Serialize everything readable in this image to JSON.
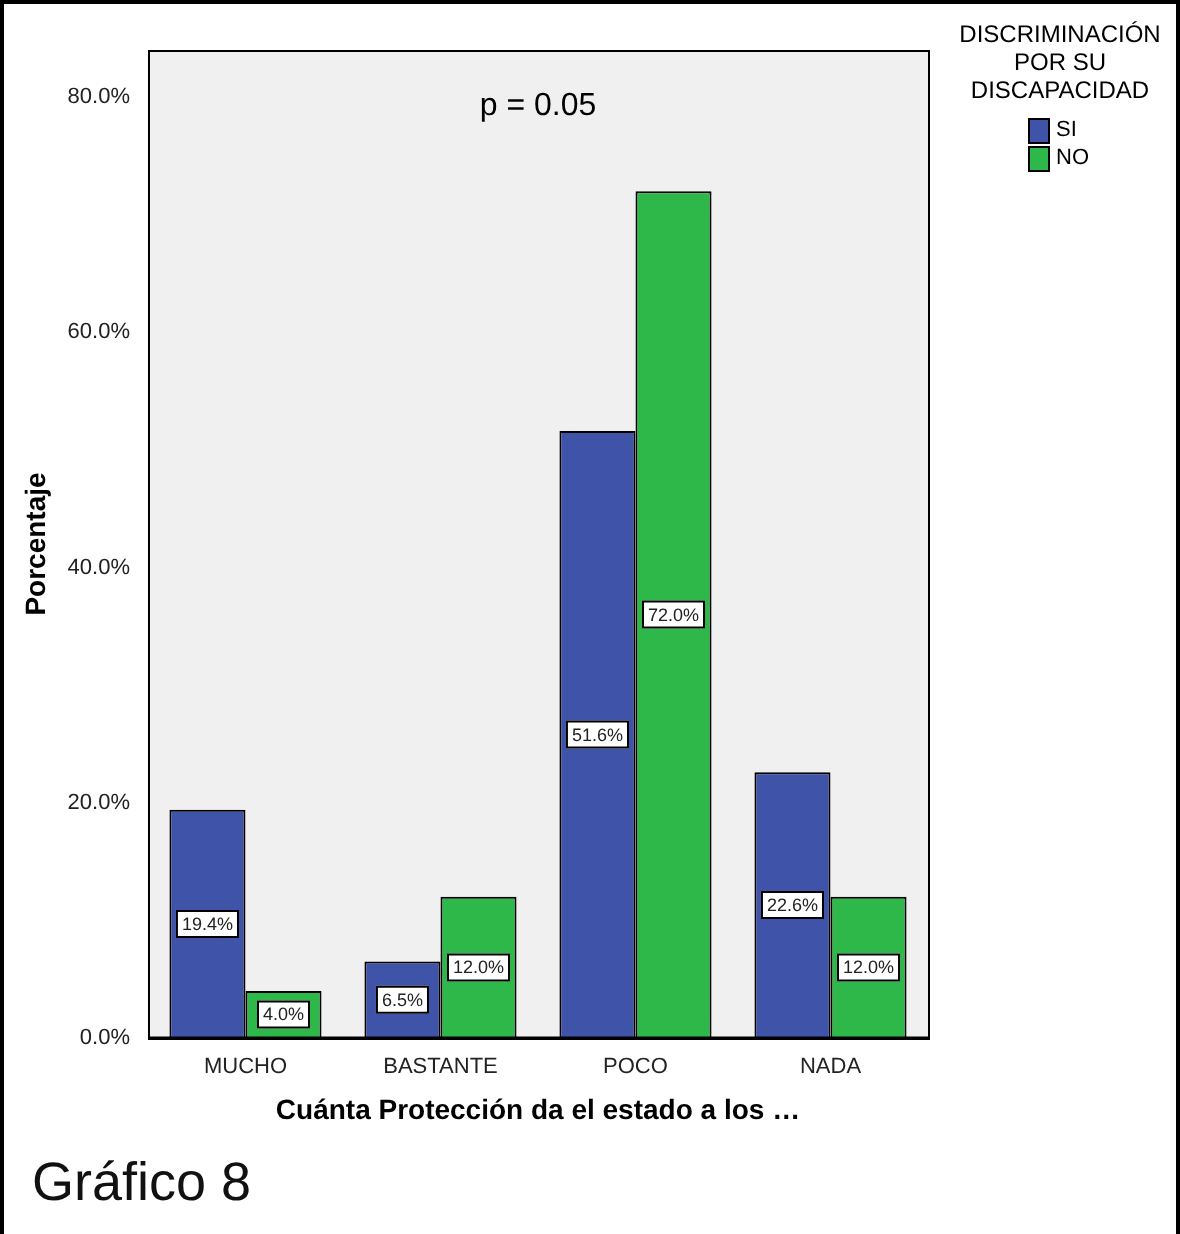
{
  "chart_data": {
    "type": "bar",
    "xlabel": "Cuánta Protección da el estado a los …",
    "ylabel": "Porcentaje",
    "legend_title": "DISCRIMINACIÓN POR SU DISCAPACIDAD",
    "categories": [
      "MUCHO",
      "BASTANTE",
      "POCO",
      "NADA"
    ],
    "series": [
      {
        "name": "SI",
        "color": "#3f54a8",
        "values": [
          19.4,
          6.5,
          51.6,
          22.6
        ],
        "value_labels": [
          "19.4%",
          "6.5%",
          "51.6%",
          "22.6%"
        ]
      },
      {
        "name": "NO",
        "color": "#2eb84a",
        "values": [
          4.0,
          12.0,
          72.0,
          12.0
        ],
        "value_labels": [
          "4.0%",
          "12.0%",
          "72.0%",
          "12.0%"
        ]
      }
    ],
    "ylim": [
      0,
      84
    ],
    "yticks": [
      {
        "value": 0,
        "label": "0.0%"
      },
      {
        "value": 20,
        "label": "20.0%"
      },
      {
        "value": 40,
        "label": "40.0%"
      },
      {
        "value": 60,
        "label": "60.0%"
      },
      {
        "value": 80,
        "label": "80.0%"
      }
    ],
    "grid": false,
    "legend": "top right",
    "annotations": [
      "p = 0.05",
      "Gráfico 8"
    ]
  }
}
